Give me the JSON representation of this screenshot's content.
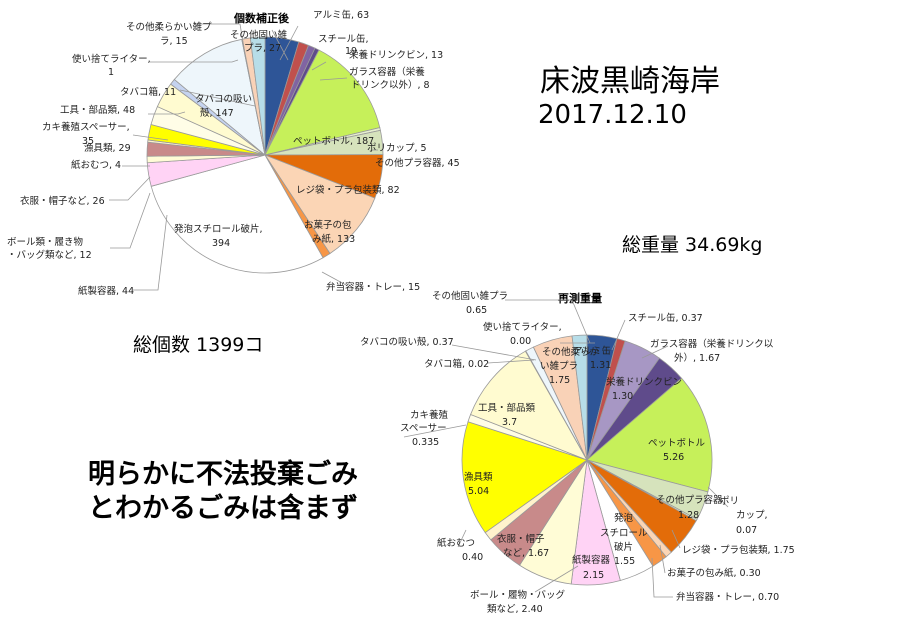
{
  "header": {
    "location": "床波黒崎海岸",
    "date": "2017.12.10"
  },
  "totals": {
    "weight": "総重量 34.69kg",
    "count": "総個数 1399コ"
  },
  "note": {
    "line1": "明らかに不法投棄ごみ",
    "line2": "とわかるごみは含まず"
  },
  "chart_data": [
    {
      "type": "pie",
      "title": "個数補正後",
      "categories": [
        "アルミ缶",
        "スチール缶",
        "栄養ドリンクビン",
        "ガラス容器（栄養ドリンク以外）",
        "ペットボトル",
        "ポリカップ",
        "その他プラ容器",
        "レジ袋・プラ包装類",
        "お菓子の包み紙",
        "弁当容器・トレー",
        "発泡スチロール破片",
        "紙製容器",
        "ボール類・履き物・バッグ類など",
        "衣服・帽子など",
        "紙おむつ",
        "漁具類",
        "カキ養殖スペーサー",
        "工具・部品類",
        "タバコ箱",
        "タバコの吸い殻",
        "使い捨てライター",
        "その他柔らかい雑プラ",
        "その他固い雑プラ"
      ],
      "values": [
        63,
        19,
        13,
        8,
        187,
        5,
        45,
        82,
        133,
        15,
        394,
        44,
        12,
        26,
        4,
        29,
        35,
        48,
        11,
        147,
        1,
        15,
        27
      ],
      "colors": [
        "#2e5597",
        "#c0504d",
        "#8064a2",
        "#5f4b8b",
        "#c6f05a",
        "#e7f0d0",
        "#d6e3bc",
        "#e36c09",
        "#fbd5b5",
        "#f79646",
        "#ffffff",
        "#ffd3f5",
        "#fffcd6",
        "#c88a8a",
        "#fff2cc",
        "#ffff00",
        "#fffde7",
        "#fffbd0",
        "#c5d3f0",
        "#eef6fb",
        "#fce4d6",
        "#f9d2b7",
        "#b7dde8"
      ]
    },
    {
      "type": "pie",
      "title": "再測重量",
      "categories": [
        "アルミ缶",
        "スチール缶",
        "ガラス容器（栄養ドリンク以外）",
        "栄養ドリンクビン",
        "ペットボトル",
        "その他プラ容器",
        "ポリカップ",
        "レジ袋・プラ包装類",
        "お菓子の包み紙",
        "弁当容器・トレー",
        "発泡スチロール破片",
        "紙製容器",
        "ボール・履物・バッグ類など",
        "衣服・帽子など",
        "紙おむつ",
        "漁具類",
        "カキ養殖スペーサー",
        "工具・部品類",
        "タバコ箱",
        "タバコの吸い殻",
        "使い捨てライター",
        "その他柔らかい雑プラ",
        "その他固い雑プラ"
      ],
      "values": [
        1.31,
        0.37,
        1.67,
        1.3,
        5.26,
        1.28,
        0.07,
        1.75,
        0.3,
        0.7,
        1.55,
        2.15,
        2.4,
        1.67,
        0.4,
        5.04,
        0.335,
        3.7,
        0.02,
        0.37,
        0.0,
        1.75,
        0.65
      ],
      "colors": [
        "#2e5597",
        "#c0504d",
        "#a797c4",
        "#5f4b8b",
        "#c6f05a",
        "#d6e3bc",
        "#e7f0d0",
        "#e36c09",
        "#fbd5b5",
        "#f79646",
        "#ffffff",
        "#ffd3f5",
        "#fffcd6",
        "#c88a8a",
        "#fff2cc",
        "#ffff00",
        "#fffde7",
        "#fffbd0",
        "#c5d3f0",
        "#eef6fb",
        "#fce4d6",
        "#f9d2b7",
        "#b7dde8"
      ]
    }
  ],
  "labels_count": [
    "アルミ缶, 63",
    "スチール缶,",
    "19",
    "栄養ドリンクビン, 13",
    "ガラス容器（栄養",
    "ドリンク以外）, 8",
    "ペットボトル, 187",
    "ポリカップ, 5",
    "その他プラ容器, 45",
    "レジ袋・プラ包装類, 82",
    "お菓子の包",
    "み紙, 133",
    "弁当容器・トレー, 15",
    "発泡スチロール破片,",
    "394",
    "紙製容器, 44",
    "ボール類・履き物",
    "・バッグ類など, 12",
    "衣服・帽子など, 26",
    "紙おむつ, 4",
    "漁具類, 29",
    "カキ養殖スペーサー,",
    "35",
    "工具・部品類, 48",
    "タバコ箱, 11",
    "タバコの吸い",
    "殻, 147",
    "使い捨てライター,",
    "1",
    "その他柔らかい雑プ",
    "ラ, 15",
    "その他固い雑",
    "プラ, 27"
  ],
  "labels_weight": [
    "アルミ缶",
    "1.31",
    "スチール缶, 0.37",
    "ガラス容器（栄養ドリンク以",
    "外）, 1.67",
    "栄養ドリンクビン",
    "1.30",
    "ペットボトル",
    "5.26",
    "その他プラ容器",
    "1.28",
    "ポリ",
    "カップ,",
    "0.07",
    "レジ袋・プラ包装類, 1.75",
    "お菓子の包み紙, 0.30",
    "弁当容器・トレー, 0.70",
    "発泡",
    "スチロール",
    "破片",
    "1.55",
    "紙製容器",
    "2.15",
    "ボール・履物・バッグ",
    "類など, 2.40",
    "衣服・帽子",
    "など, 1.67",
    "紙おむつ",
    "0.40",
    "漁具類",
    "5.04",
    "カキ養殖",
    "スペーサー",
    "0.335",
    "工具・部品類",
    "3.7",
    "タバコ箱, 0.02",
    "タバコの吸い殻, 0.37",
    "使い捨てライター,",
    "0.00",
    "その他柔らか",
    "い雑プラ",
    "1.75",
    "その他固い雑プラ",
    "0.65"
  ]
}
